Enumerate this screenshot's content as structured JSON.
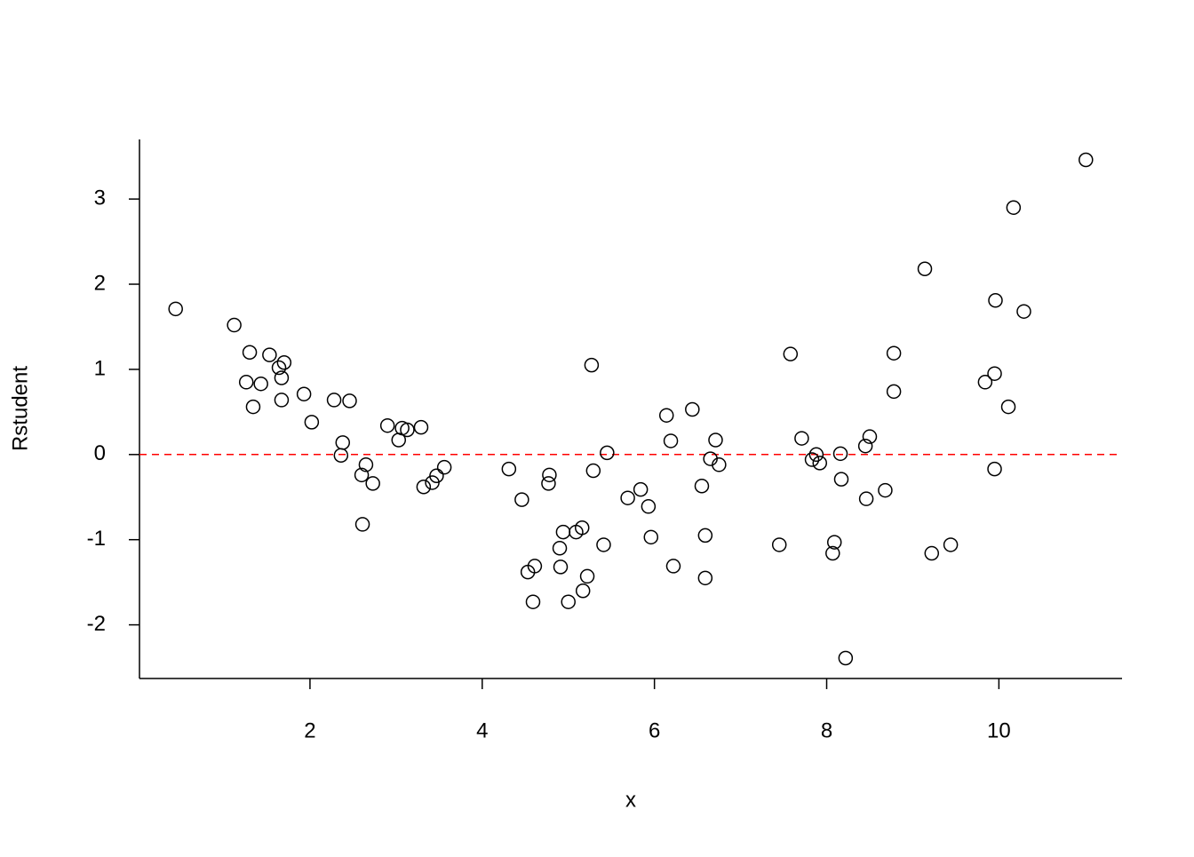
{
  "chart_data": {
    "type": "scatter",
    "x_label": "x",
    "y_label": "Rstudent",
    "x": [
      0.44,
      1.12,
      1.3,
      1.26,
      1.34,
      1.43,
      1.53,
      1.64,
      1.7,
      1.67,
      1.67,
      1.93,
      2.02,
      2.28,
      2.46,
      2.38,
      2.36,
      2.6,
      2.65,
      2.61,
      2.73,
      2.9,
      3.03,
      3.07,
      3.13,
      3.29,
      3.32,
      3.42,
      3.47,
      3.56,
      4.31,
      4.46,
      4.53,
      4.61,
      4.59,
      4.78,
      4.77,
      4.9,
      4.91,
      4.94,
      5.0,
      5.09,
      5.16,
      5.17,
      5.22,
      5.27,
      5.29,
      5.41,
      5.45,
      5.69,
      5.84,
      5.93,
      5.96,
      6.14,
      6.19,
      6.22,
      6.44,
      6.55,
      6.59,
      6.59,
      6.65,
      6.71,
      6.75,
      7.45,
      7.58,
      7.71,
      7.83,
      7.88,
      7.92,
      8.07,
      8.09,
      8.16,
      8.17,
      8.22,
      8.45,
      8.46,
      8.5,
      8.68,
      8.78,
      8.78,
      9.14,
      9.22,
      9.44,
      9.84,
      9.95,
      9.96,
      9.95,
      10.11,
      10.17,
      10.29,
      11.01
    ],
    "values": [
      1.71,
      1.52,
      1.2,
      0.85,
      0.56,
      0.83,
      1.17,
      1.02,
      1.08,
      0.9,
      0.64,
      0.71,
      0.38,
      0.64,
      0.63,
      0.14,
      -0.01,
      -0.24,
      -0.12,
      -0.82,
      -0.34,
      0.34,
      0.17,
      0.31,
      0.29,
      0.32,
      -0.38,
      -0.33,
      -0.25,
      -0.15,
      -0.17,
      -0.53,
      -1.38,
      -1.31,
      -1.73,
      -0.24,
      -0.34,
      -1.1,
      -1.32,
      -0.91,
      -1.73,
      -0.91,
      -0.86,
      -1.6,
      -1.43,
      1.05,
      -0.19,
      -1.06,
      0.02,
      -0.51,
      -0.41,
      -0.61,
      -0.97,
      0.46,
      0.16,
      -1.31,
      0.53,
      -0.37,
      -0.95,
      -1.45,
      -0.05,
      0.17,
      -0.12,
      -1.06,
      1.18,
      0.19,
      -0.06,
      0.0,
      -0.1,
      -1.16,
      -1.03,
      0.01,
      -0.29,
      -2.39,
      0.1,
      -0.52,
      0.21,
      -0.42,
      1.19,
      0.74,
      2.18,
      -1.16,
      -1.06,
      0.85,
      0.95,
      1.81,
      -0.17,
      0.56,
      2.9,
      1.68,
      3.46
    ],
    "color": "#000000",
    "xlim": [
      0.02,
      11.43
    ],
    "ylim": [
      -2.63,
      3.7
    ],
    "xticks": [
      2,
      4,
      6,
      8,
      10
    ],
    "yticks": [
      -2,
      -1,
      0,
      1,
      2,
      3
    ],
    "reference_line": {
      "y": 0,
      "color": "#ff0000",
      "style": "dashed"
    }
  }
}
